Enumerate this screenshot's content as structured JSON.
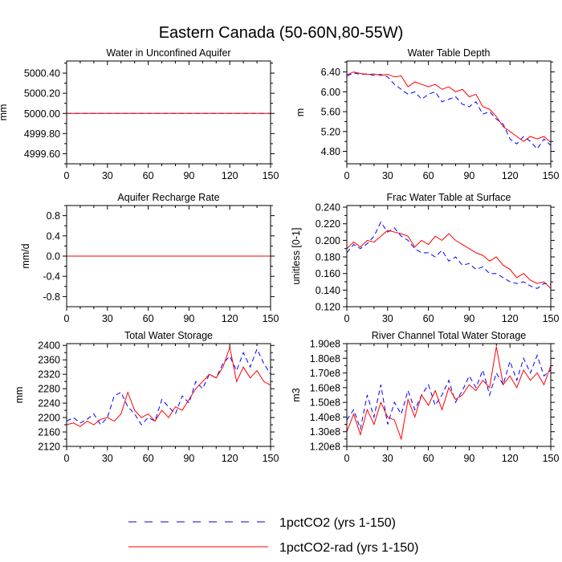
{
  "figure": {
    "title": "Eastern Canada (50-60N,80-55W)"
  },
  "legend": {
    "entries": [
      {
        "label": "1pctCO2 (yrs 1-150)",
        "color": "#0000ff",
        "dash": "dashed"
      },
      {
        "label": "1pctCO2-rad (yrs 1-150)",
        "color": "#ff0000",
        "dash": "solid"
      }
    ]
  },
  "chart_data": [
    {
      "type": "line",
      "title": "Water in Unconfined Aquifer",
      "ylabel": "mm",
      "xlim": [
        0,
        150
      ],
      "ylim": [
        4999.5,
        5000.52
      ],
      "xticks": [
        0,
        30,
        60,
        90,
        120,
        150
      ],
      "yticks": [
        4999.6,
        4999.8,
        5000.0,
        5000.2,
        5000.4
      ],
      "ytick_labels": [
        "4999.60",
        "4999.80",
        "5000.00",
        "5000.20",
        "5000.40"
      ],
      "series": [
        {
          "name": "1pctCO2 (yrs 1-150)",
          "color": "#0000ff",
          "dash": "dashed",
          "x": [
            0,
            150
          ],
          "y": [
            5000.0,
            5000.0
          ]
        },
        {
          "name": "1pctCO2-rad (yrs 1-150)",
          "color": "#ff0000",
          "dash": "solid",
          "x": [
            0,
            150
          ],
          "y": [
            5000.0,
            5000.0
          ]
        }
      ]
    },
    {
      "type": "line",
      "title": "Water Table Depth",
      "ylabel": "m",
      "xlim": [
        0,
        150
      ],
      "ylim": [
        4.55,
        6.62
      ],
      "xticks": [
        0,
        30,
        60,
        90,
        120,
        150
      ],
      "yticks": [
        4.8,
        5.2,
        5.6,
        6.0,
        6.4
      ],
      "ytick_labels": [
        "4.80",
        "5.20",
        "5.60",
        "6.00",
        "6.40"
      ],
      "series": [
        {
          "name": "1pctCO2 (yrs 1-150)",
          "color": "#0000ff",
          "dash": "dashed",
          "x": [
            0,
            5,
            10,
            15,
            20,
            25,
            30,
            35,
            40,
            45,
            50,
            55,
            60,
            65,
            70,
            75,
            80,
            85,
            90,
            95,
            100,
            105,
            110,
            115,
            120,
            125,
            130,
            135,
            140,
            145,
            150
          ],
          "y": [
            6.32,
            6.38,
            6.35,
            6.36,
            6.33,
            6.35,
            6.3,
            6.15,
            6.05,
            5.95,
            6.0,
            5.85,
            5.95,
            6.0,
            5.8,
            5.85,
            5.9,
            5.75,
            5.7,
            5.8,
            5.55,
            5.6,
            5.45,
            5.35,
            5.05,
            4.95,
            5.1,
            5.0,
            4.85,
            5.05,
            4.92
          ]
        },
        {
          "name": "1pctCO2-rad (yrs 1-150)",
          "color": "#ff0000",
          "dash": "solid",
          "x": [
            0,
            5,
            10,
            15,
            20,
            25,
            30,
            35,
            40,
            45,
            50,
            55,
            60,
            65,
            70,
            75,
            80,
            85,
            90,
            95,
            100,
            105,
            110,
            115,
            120,
            125,
            130,
            135,
            140,
            145,
            150
          ],
          "y": [
            6.34,
            6.4,
            6.37,
            6.35,
            6.36,
            6.33,
            6.35,
            6.3,
            6.32,
            6.1,
            6.2,
            6.15,
            6.1,
            6.15,
            6.05,
            6.1,
            6.0,
            6.05,
            5.9,
            5.95,
            5.7,
            5.65,
            5.5,
            5.3,
            5.2,
            5.1,
            5.0,
            5.1,
            5.05,
            5.1,
            4.98
          ]
        }
      ]
    },
    {
      "type": "line",
      "title": "Aquifer Recharge Rate",
      "ylabel": "mm/d",
      "xlim": [
        0,
        150
      ],
      "ylim": [
        -1.0,
        1.0
      ],
      "xticks": [
        0,
        30,
        60,
        90,
        120,
        150
      ],
      "yticks": [
        -0.8,
        -0.4,
        0.0,
        0.4,
        0.8
      ],
      "ytick_labels": [
        "-0.8",
        "-0.4",
        "0.0",
        "0.4",
        "0.8"
      ],
      "series": [
        {
          "name": "1pctCO2 (yrs 1-150)",
          "color": "#0000ff",
          "dash": "dashed",
          "x": [
            0,
            150
          ],
          "y": [
            0.0,
            0.0
          ]
        },
        {
          "name": "1pctCO2-rad (yrs 1-150)",
          "color": "#ff0000",
          "dash": "solid",
          "x": [
            0,
            150
          ],
          "y": [
            0.0,
            0.0
          ]
        }
      ]
    },
    {
      "type": "line",
      "title": "Frac Water Table at Surface",
      "ylabel": "unitless [0-1]",
      "xlim": [
        0,
        150
      ],
      "ylim": [
        0.12,
        0.242
      ],
      "xticks": [
        0,
        30,
        60,
        90,
        120,
        150
      ],
      "yticks": [
        0.12,
        0.14,
        0.16,
        0.18,
        0.2,
        0.22,
        0.24
      ],
      "ytick_labels": [
        "0.120",
        "0.140",
        "0.160",
        "0.180",
        "0.200",
        "0.220",
        "0.240"
      ],
      "series": [
        {
          "name": "1pctCO2 (yrs 1-150)",
          "color": "#0000ff",
          "dash": "dashed",
          "x": [
            0,
            5,
            10,
            15,
            20,
            25,
            30,
            35,
            40,
            45,
            50,
            55,
            60,
            65,
            70,
            75,
            80,
            85,
            90,
            95,
            100,
            105,
            110,
            115,
            120,
            125,
            130,
            135,
            140,
            145,
            150
          ],
          "y": [
            0.185,
            0.195,
            0.19,
            0.196,
            0.205,
            0.222,
            0.21,
            0.215,
            0.205,
            0.2,
            0.19,
            0.185,
            0.185,
            0.18,
            0.188,
            0.175,
            0.18,
            0.17,
            0.172,
            0.165,
            0.168,
            0.16,
            0.16,
            0.155,
            0.15,
            0.148,
            0.15,
            0.145,
            0.142,
            0.148,
            0.147
          ]
        },
        {
          "name": "1pctCO2-rad (yrs 1-150)",
          "color": "#ff0000",
          "dash": "solid",
          "x": [
            0,
            5,
            10,
            15,
            20,
            25,
            30,
            35,
            40,
            45,
            50,
            55,
            60,
            65,
            70,
            75,
            80,
            85,
            90,
            95,
            100,
            105,
            110,
            115,
            120,
            125,
            130,
            135,
            140,
            145,
            150
          ],
          "y": [
            0.19,
            0.198,
            0.192,
            0.2,
            0.198,
            0.205,
            0.212,
            0.21,
            0.208,
            0.205,
            0.192,
            0.2,
            0.195,
            0.205,
            0.2,
            0.208,
            0.2,
            0.195,
            0.19,
            0.185,
            0.182,
            0.175,
            0.18,
            0.17,
            0.165,
            0.155,
            0.16,
            0.152,
            0.148,
            0.15,
            0.142
          ]
        }
      ]
    },
    {
      "type": "line",
      "title": "Total Water Storage",
      "ylabel": "mm",
      "xlim": [
        0,
        150
      ],
      "ylim": [
        2120,
        2405
      ],
      "xticks": [
        0,
        30,
        60,
        90,
        120,
        150
      ],
      "yticks": [
        2120,
        2160,
        2200,
        2240,
        2280,
        2320,
        2360,
        2400
      ],
      "ytick_labels": [
        "2120",
        "2160",
        "2200",
        "2240",
        "2280",
        "2320",
        "2360",
        "2400"
      ],
      "series": [
        {
          "name": "1pctCO2 (yrs 1-150)",
          "color": "#0000ff",
          "dash": "dashed",
          "x": [
            0,
            5,
            10,
            15,
            20,
            25,
            30,
            35,
            40,
            45,
            50,
            55,
            60,
            65,
            70,
            75,
            80,
            85,
            90,
            95,
            100,
            105,
            110,
            115,
            120,
            125,
            130,
            135,
            140,
            145,
            150
          ],
          "y": [
            2190,
            2200,
            2185,
            2195,
            2210,
            2180,
            2200,
            2260,
            2270,
            2230,
            2210,
            2180,
            2200,
            2190,
            2250,
            2230,
            2210,
            2260,
            2240,
            2300,
            2280,
            2320,
            2310,
            2350,
            2370,
            2330,
            2380,
            2340,
            2390,
            2350,
            2320
          ]
        },
        {
          "name": "1pctCO2-rad (yrs 1-150)",
          "color": "#ff0000",
          "dash": "solid",
          "x": [
            0,
            5,
            10,
            15,
            20,
            25,
            30,
            35,
            40,
            45,
            50,
            55,
            60,
            65,
            70,
            75,
            80,
            85,
            90,
            95,
            100,
            105,
            110,
            115,
            120,
            125,
            130,
            135,
            140,
            145,
            150
          ],
          "y": [
            2180,
            2185,
            2175,
            2190,
            2180,
            2195,
            2200,
            2190,
            2210,
            2270,
            2220,
            2200,
            2210,
            2190,
            2220,
            2200,
            2230,
            2220,
            2250,
            2280,
            2300,
            2320,
            2310,
            2340,
            2395,
            2300,
            2340,
            2310,
            2330,
            2300,
            2290
          ]
        }
      ]
    },
    {
      "type": "line",
      "title": "River Channel Total Water Storage",
      "ylabel": "m3",
      "xlim": [
        0,
        150
      ],
      "ylim": [
        120000000.0,
        190000000.0
      ],
      "xticks": [
        0,
        30,
        60,
        90,
        120,
        150
      ],
      "yticks": [
        120000000.0,
        130000000.0,
        140000000.0,
        150000000.0,
        160000000.0,
        170000000.0,
        180000000.0,
        190000000.0
      ],
      "ytick_labels": [
        "1.20e8",
        "1.30e8",
        "1.40e8",
        "1.50e8",
        "1.60e8",
        "1.70e8",
        "1.80e8",
        "1.90e8"
      ],
      "series": [
        {
          "name": "1pctCO2 (yrs 1-150)",
          "color": "#0000ff",
          "dash": "dashed",
          "x": [
            0,
            5,
            10,
            15,
            20,
            25,
            30,
            35,
            40,
            45,
            50,
            55,
            60,
            65,
            70,
            75,
            80,
            85,
            90,
            95,
            100,
            105,
            110,
            115,
            120,
            125,
            130,
            135,
            140,
            145,
            150
          ],
          "y": [
            138000000.0,
            145000000.0,
            132000000.0,
            155000000.0,
            140000000.0,
            162000000.0,
            135000000.0,
            150000000.0,
            142000000.0,
            158000000.0,
            145000000.0,
            155000000.0,
            162000000.0,
            148000000.0,
            155000000.0,
            165000000.0,
            150000000.0,
            158000000.0,
            168000000.0,
            160000000.0,
            172000000.0,
            155000000.0,
            170000000.0,
            162000000.0,
            178000000.0,
            165000000.0,
            180000000.0,
            170000000.0,
            182000000.0,
            168000000.0,
            172000000.0
          ]
        },
        {
          "name": "1pctCO2-rad (yrs 1-150)",
          "color": "#ff0000",
          "dash": "solid",
          "x": [
            0,
            5,
            10,
            15,
            20,
            25,
            30,
            35,
            40,
            45,
            50,
            55,
            60,
            65,
            70,
            75,
            80,
            85,
            90,
            95,
            100,
            105,
            110,
            115,
            120,
            125,
            130,
            135,
            140,
            145,
            150
          ],
          "y": [
            130000000.0,
            142000000.0,
            128000000.0,
            145000000.0,
            135000000.0,
            150000000.0,
            140000000.0,
            138000000.0,
            125000000.0,
            152000000.0,
            140000000.0,
            155000000.0,
            148000000.0,
            158000000.0,
            145000000.0,
            160000000.0,
            152000000.0,
            155000000.0,
            162000000.0,
            158000000.0,
            165000000.0,
            160000000.0,
            188000000.0,
            162000000.0,
            168000000.0,
            160000000.0,
            172000000.0,
            165000000.0,
            170000000.0,
            162000000.0,
            175000000.0
          ]
        }
      ]
    }
  ]
}
